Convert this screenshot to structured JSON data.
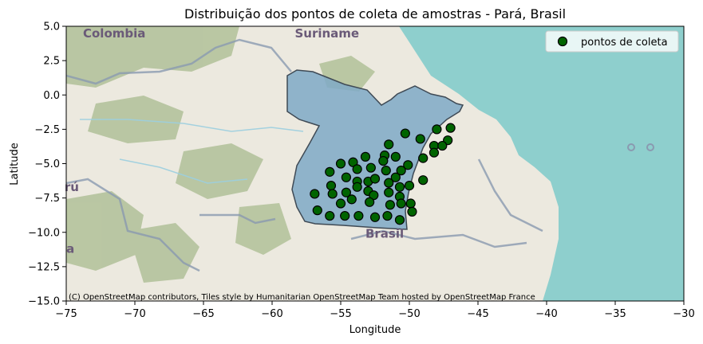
{
  "title": "Distribuição dos pontos de coleta de amostras - Pará, Brasil",
  "xlabel": "Longitude",
  "ylabel": "Latitude",
  "xlim": [
    -75,
    -30
  ],
  "ylim": [
    -15,
    5
  ],
  "x_ticks": [
    -75,
    -70,
    -65,
    -60,
    -55,
    -50,
    -45,
    -40,
    -35,
    -30
  ],
  "x_tick_labels": [
    "−75",
    "−70",
    "−65",
    "−60",
    "−55",
    "−50",
    "−45",
    "−40",
    "−35",
    "−30"
  ],
  "y_ticks": [
    5.0,
    2.5,
    0.0,
    -2.5,
    -5.0,
    -7.5,
    -10.0,
    -12.5,
    -15.0
  ],
  "y_tick_labels": [
    "5.0",
    "2.5",
    "0.0",
    "−2.5",
    "−5.0",
    "−7.5",
    "−10.0",
    "−12.5",
    "−15.0"
  ],
  "legend": {
    "label": "pontos de coleta",
    "position": "upper right"
  },
  "map_labels": [
    {
      "text": "Colombia",
      "lon": -71.5,
      "lat": 4.2
    },
    {
      "text": "Suriname",
      "lon": -56.0,
      "lat": 4.2
    },
    {
      "text": "Brasil",
      "lon": -51.8,
      "lat": -10.4
    },
    {
      "text": "rú",
      "lon": -74.6,
      "lat": -7.0
    },
    {
      "text": "a",
      "lon": -74.7,
      "lat": -11.5
    }
  ],
  "attribution": "(C) OpenStreetMap contributors, Tiles style by Humanitarian OpenStreetMap Team hosted by OpenStreetMap France",
  "colors": {
    "ocean": "#8ecfcd",
    "land": "#ece9df",
    "forest": "#a9bb8f",
    "state_fill": "#7fa9c7",
    "point_fill": "#006400",
    "point_edge": "#000000"
  },
  "chart_data": {
    "type": "scatter",
    "region": "Pará",
    "series": [
      {
        "name": "pontos de coleta",
        "points": [
          [
            -50.3,
            -2.8
          ],
          [
            -48.0,
            -2.5
          ],
          [
            -47.0,
            -2.4
          ],
          [
            -49.2,
            -3.2
          ],
          [
            -47.2,
            -3.3
          ],
          [
            -48.2,
            -3.7
          ],
          [
            -47.6,
            -3.7
          ],
          [
            -48.2,
            -4.2
          ],
          [
            -51.5,
            -3.6
          ],
          [
            -53.2,
            -4.5
          ],
          [
            -51.8,
            -4.4
          ],
          [
            -49.0,
            -4.6
          ],
          [
            -51.0,
            -4.5
          ],
          [
            -54.1,
            -4.9
          ],
          [
            -51.9,
            -4.8
          ],
          [
            -50.1,
            -5.1
          ],
          [
            -55.0,
            -5.0
          ],
          [
            -53.8,
            -5.4
          ],
          [
            -52.8,
            -5.3
          ],
          [
            -51.7,
            -5.5
          ],
          [
            -50.6,
            -5.5
          ],
          [
            -55.8,
            -5.6
          ],
          [
            -54.6,
            -6.0
          ],
          [
            -53.0,
            -6.3
          ],
          [
            -51.0,
            -6.0
          ],
          [
            -49.0,
            -6.2
          ],
          [
            -52.5,
            -6.1
          ],
          [
            -51.5,
            -6.4
          ],
          [
            -50.7,
            -6.7
          ],
          [
            -50.0,
            -6.6
          ],
          [
            -53.8,
            -6.3
          ],
          [
            -53.8,
            -6.7
          ],
          [
            -55.7,
            -6.6
          ],
          [
            -56.9,
            -7.2
          ],
          [
            -55.6,
            -7.2
          ],
          [
            -54.6,
            -7.1
          ],
          [
            -53.0,
            -7.0
          ],
          [
            -52.6,
            -7.3
          ],
          [
            -51.5,
            -7.1
          ],
          [
            -50.7,
            -7.4
          ],
          [
            -54.2,
            -7.6
          ],
          [
            -52.9,
            -7.8
          ],
          [
            -55.0,
            -7.9
          ],
          [
            -51.4,
            -8.0
          ],
          [
            -50.6,
            -7.9
          ],
          [
            -49.9,
            -7.9
          ],
          [
            -56.7,
            -8.4
          ],
          [
            -55.8,
            -8.8
          ],
          [
            -54.7,
            -8.8
          ],
          [
            -53.7,
            -8.8
          ],
          [
            -52.5,
            -8.9
          ],
          [
            -51.6,
            -8.8
          ],
          [
            -49.8,
            -8.5
          ],
          [
            -50.7,
            -9.1
          ]
        ]
      }
    ]
  }
}
